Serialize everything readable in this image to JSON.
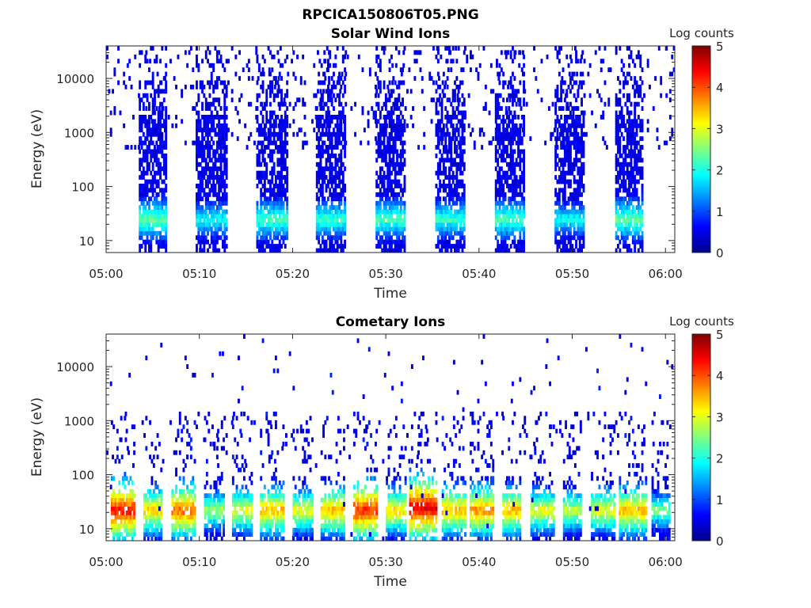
{
  "figure": {
    "title": "RPCICA150806T05.PNG"
  },
  "chart_data": [
    {
      "type": "heatmap",
      "title": "Solar Wind Ions",
      "xlabel": "Time",
      "ylabel": "Energy (eV)",
      "x_ticks": [
        "05:00",
        "05:10",
        "05:20",
        "05:30",
        "05:40",
        "05:50",
        "06:00"
      ],
      "x_range_min": [
        0,
        61
      ],
      "y_scale": "log",
      "y_ticks": [
        10,
        100,
        1000,
        10000
      ],
      "y_tick_labels": [
        "10",
        "100",
        "1000",
        "10000"
      ],
      "y_range_eV": [
        6,
        40000
      ],
      "colorbar": {
        "label": "Log counts",
        "ticks": [
          0,
          1,
          2,
          3,
          4,
          5
        ],
        "colormap": "jet"
      },
      "scan_sweeps_min": [
        {
          "start": 3.5,
          "end": 6.5,
          "peak_energy_eV": 25,
          "peak_log_counts": 2.4
        },
        {
          "start": 9.6,
          "end": 12.8,
          "peak_energy_eV": 25,
          "peak_log_counts": 2.0
        },
        {
          "start": 16.1,
          "end": 19.3,
          "peak_energy_eV": 25,
          "peak_log_counts": 2.3
        },
        {
          "start": 22.5,
          "end": 25.6,
          "peak_energy_eV": 25,
          "peak_log_counts": 2.2
        },
        {
          "start": 28.9,
          "end": 32.0,
          "peak_energy_eV": 25,
          "peak_log_counts": 2.3
        },
        {
          "start": 35.3,
          "end": 38.5,
          "peak_energy_eV": 25,
          "peak_log_counts": 2.2
        },
        {
          "start": 41.7,
          "end": 44.9,
          "peak_energy_eV": 25,
          "peak_log_counts": 2.3
        },
        {
          "start": 48.1,
          "end": 51.3,
          "peak_energy_eV": 25,
          "peak_log_counts": 2.0
        },
        {
          "start": 54.6,
          "end": 57.6,
          "peak_energy_eV": 25,
          "peak_log_counts": 2.4
        }
      ],
      "colors": {
        "low": "#00008f",
        "mid": "#00ffff",
        "high": "#ff0000"
      }
    },
    {
      "type": "heatmap",
      "title": "Cometary Ions",
      "xlabel": "Time",
      "ylabel": "Energy (eV)",
      "x_ticks": [
        "05:00",
        "05:10",
        "05:20",
        "05:30",
        "05:40",
        "05:50",
        "06:00"
      ],
      "x_range_min": [
        0,
        61
      ],
      "y_scale": "log",
      "y_ticks": [
        10,
        100,
        1000,
        10000
      ],
      "y_tick_labels": [
        "10",
        "100",
        "1000",
        "10000"
      ],
      "y_range_eV": [
        6,
        40000
      ],
      "colorbar": {
        "label": "Log counts",
        "ticks": [
          0,
          1,
          2,
          3,
          4,
          5
        ],
        "colormap": "jet"
      },
      "scan_sweeps_min": [
        {
          "start": 0.5,
          "end": 3.0,
          "peak_energy_eV": 22,
          "peak_log_counts": 3.8
        },
        {
          "start": 4.0,
          "end": 6.0,
          "peak_energy_eV": 22,
          "peak_log_counts": 2.9
        },
        {
          "start": 7.0,
          "end": 9.5,
          "peak_energy_eV": 22,
          "peak_log_counts": 3.4
        },
        {
          "start": 10.5,
          "end": 12.5,
          "peak_energy_eV": 22,
          "peak_log_counts": 2.2
        },
        {
          "start": 13.5,
          "end": 15.5,
          "peak_energy_eV": 22,
          "peak_log_counts": 2.6
        },
        {
          "start": 16.5,
          "end": 19.0,
          "peak_energy_eV": 22,
          "peak_log_counts": 3.0
        },
        {
          "start": 20.0,
          "end": 22.0,
          "peak_energy_eV": 22,
          "peak_log_counts": 2.6
        },
        {
          "start": 23.0,
          "end": 25.5,
          "peak_energy_eV": 22,
          "peak_log_counts": 3.0
        },
        {
          "start": 26.5,
          "end": 29.0,
          "peak_energy_eV": 22,
          "peak_log_counts": 3.7
        },
        {
          "start": 30.0,
          "end": 32.0,
          "peak_energy_eV": 22,
          "peak_log_counts": 2.8
        },
        {
          "start": 32.5,
          "end": 35.5,
          "peak_energy_eV": 25,
          "peak_log_counts": 4.0
        },
        {
          "start": 36.0,
          "end": 38.5,
          "peak_energy_eV": 22,
          "peak_log_counts": 3.0
        },
        {
          "start": 39.0,
          "end": 41.5,
          "peak_energy_eV": 22,
          "peak_log_counts": 3.2
        },
        {
          "start": 42.5,
          "end": 44.5,
          "peak_energy_eV": 22,
          "peak_log_counts": 3.0
        },
        {
          "start": 45.5,
          "end": 48.0,
          "peak_energy_eV": 22,
          "peak_log_counts": 2.6
        },
        {
          "start": 49.0,
          "end": 51.0,
          "peak_energy_eV": 22,
          "peak_log_counts": 2.4
        },
        {
          "start": 52.0,
          "end": 54.5,
          "peak_energy_eV": 22,
          "peak_log_counts": 2.6
        },
        {
          "start": 55.0,
          "end": 58.0,
          "peak_energy_eV": 22,
          "peak_log_counts": 3.0
        },
        {
          "start": 58.5,
          "end": 60.5,
          "peak_energy_eV": 22,
          "peak_log_counts": 2.0
        }
      ],
      "colors": {
        "low": "#00008f",
        "mid": "#00ffff",
        "high": "#ff0000"
      }
    }
  ]
}
